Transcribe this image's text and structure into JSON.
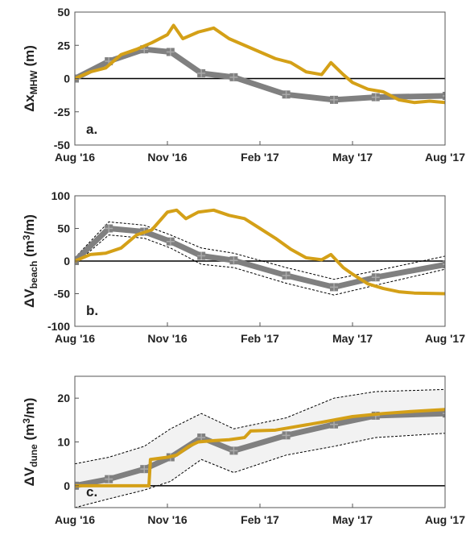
{
  "chart_data": [
    {
      "type": "line",
      "annotation": "a.",
      "ylabel": [
        {
          "text": "Δx"
        },
        {
          "text": "MHW",
          "sub": true
        },
        {
          "text": " (m)"
        }
      ],
      "xlim": [
        0,
        12
      ],
      "xticks": [
        {
          "value": 0,
          "label": "Aug '16"
        },
        {
          "value": 3,
          "label": "Nov '16"
        },
        {
          "value": 6,
          "label": "Feb '17"
        },
        {
          "value": 9,
          "label": "May '17"
        },
        {
          "value": 12,
          "label": "Aug '17"
        }
      ],
      "ylim": [
        -50,
        50
      ],
      "yticks": [
        -50,
        -25,
        0,
        25,
        50
      ],
      "zero_line": true,
      "band": false,
      "series": [
        {
          "color": "#808080",
          "style": "markers",
          "x": [
            0,
            1.1,
            2.25,
            3.1,
            4.1,
            5.15,
            6.85,
            8.4,
            9.75,
            12.05
          ],
          "values": [
            0,
            13,
            22,
            20,
            4,
            1,
            -12,
            -16,
            -14,
            -13
          ]
        },
        {
          "color": "#d4a017",
          "style": "line",
          "x": [
            0,
            0.5,
            1,
            1.5,
            2,
            2.5,
            3,
            3.2,
            3.5,
            4,
            4.5,
            5,
            5.5,
            6,
            6.5,
            7,
            7.5,
            8,
            8.3,
            8.7,
            9,
            9.5,
            10,
            10.5,
            11,
            11.5,
            12
          ],
          "values": [
            0,
            5,
            8,
            18,
            22,
            27,
            33,
            40,
            30,
            35,
            38,
            30,
            25,
            20,
            15,
            12,
            5,
            3,
            12,
            3,
            -3,
            -8,
            -10,
            -16,
            -18,
            -17,
            -18
          ]
        }
      ]
    },
    {
      "type": "line",
      "annotation": "b.",
      "ylabel": [
        {
          "text": "ΔV"
        },
        {
          "text": "beach",
          "sub": true
        },
        {
          "text": " (m"
        },
        {
          "text": "3",
          "sup": true
        },
        {
          "text": "/m)"
        }
      ],
      "xlim": [
        0,
        12
      ],
      "xticks": [
        {
          "value": 0,
          "label": "Aug '16"
        },
        {
          "value": 3,
          "label": "Nov '16"
        },
        {
          "value": 6,
          "label": "Feb '17"
        },
        {
          "value": 9,
          "label": "May '17"
        },
        {
          "value": 12,
          "label": "Aug '17"
        }
      ],
      "ylim": [
        -100,
        100
      ],
      "yticks": [
        -100,
        -50,
        0,
        50,
        100
      ],
      "zero_line": true,
      "band": false,
      "series": [
        {
          "color": "#000000",
          "style": "dashed",
          "x": [
            0,
            1.1,
            2.25,
            3.1,
            4.1,
            5.15,
            6.85,
            8.4,
            9.75,
            12.05
          ],
          "values": [
            5,
            60,
            55,
            40,
            20,
            12,
            -10,
            -28,
            -15,
            8
          ]
        },
        {
          "color": "#000000",
          "style": "dashed",
          "x": [
            0,
            1.1,
            2.25,
            3.1,
            4.1,
            5.15,
            6.85,
            8.4,
            9.75,
            12.05
          ],
          "values": [
            -5,
            40,
            35,
            20,
            -5,
            -10,
            -34,
            -52,
            -37,
            -12
          ]
        },
        {
          "color": "#808080",
          "style": "markers",
          "x": [
            0,
            1.1,
            2.25,
            3.1,
            4.1,
            5.15,
            6.85,
            8.4,
            9.75,
            12.05
          ],
          "values": [
            0,
            50,
            45,
            30,
            8,
            1,
            -22,
            -40,
            -25,
            -5
          ]
        },
        {
          "color": "#d4a017",
          "style": "line",
          "x": [
            0,
            0.5,
            1,
            1.5,
            2,
            2.5,
            3,
            3.3,
            3.6,
            4,
            4.5,
            5,
            5.5,
            6,
            6.5,
            7,
            7.5,
            8,
            8.3,
            8.7,
            9,
            9.5,
            10,
            10.5,
            11,
            12
          ],
          "values": [
            0,
            10,
            12,
            20,
            40,
            48,
            75,
            78,
            65,
            75,
            78,
            70,
            65,
            50,
            35,
            18,
            5,
            2,
            10,
            -10,
            -20,
            -35,
            -42,
            -47,
            -49,
            -50
          ]
        }
      ]
    },
    {
      "type": "line",
      "annotation": "c.",
      "ylabel": [
        {
          "text": "ΔV"
        },
        {
          "text": "dune",
          "sub": true
        },
        {
          "text": " (m"
        },
        {
          "text": "3",
          "sup": true
        },
        {
          "text": "/m)"
        }
      ],
      "xlim": [
        0,
        12
      ],
      "xticks": [
        {
          "value": 0,
          "label": "Aug '16"
        },
        {
          "value": 3,
          "label": "Nov '16"
        },
        {
          "value": 6,
          "label": "Feb '17"
        },
        {
          "value": 9,
          "label": "May '17"
        },
        {
          "value": 12,
          "label": "Aug '17"
        }
      ],
      "ylim": [
        -5,
        25
      ],
      "yticks": [
        0,
        10,
        20
      ],
      "zero_line": true,
      "band": true,
      "series": [
        {
          "color": "#000000",
          "style": "dashed",
          "x": [
            0,
            1.1,
            2.25,
            3.1,
            4.1,
            5.15,
            6.85,
            8.4,
            9.75,
            12.05
          ],
          "values": [
            5,
            6.5,
            9,
            13,
            16.5,
            13,
            15.5,
            20,
            21.5,
            22
          ]
        },
        {
          "color": "#000000",
          "style": "dashed",
          "x": [
            0,
            1.1,
            2.25,
            3.1,
            4.1,
            5.15,
            6.85,
            8.4,
            9.75,
            12.05
          ],
          "values": [
            -5,
            -3,
            -1,
            1,
            6,
            3,
            7,
            9,
            11,
            12
          ]
        },
        {
          "color": "#808080",
          "style": "markers",
          "x": [
            0,
            1.1,
            2.25,
            3.1,
            4.1,
            5.15,
            6.85,
            8.4,
            9.75,
            12.05
          ],
          "values": [
            0,
            1.5,
            3.8,
            6.5,
            11,
            8,
            11.5,
            14,
            16,
            16.5
          ]
        },
        {
          "color": "#d4a017",
          "style": "line",
          "x": [
            0,
            2.4,
            2.45,
            3,
            3.3,
            3.7,
            4,
            4.5,
            5,
            5.5,
            5.7,
            6.5,
            7,
            8,
            9,
            10,
            11,
            12
          ],
          "values": [
            0,
            0,
            6,
            6.5,
            7,
            9,
            10,
            10.3,
            10.5,
            11,
            12.5,
            12.7,
            13.3,
            14.5,
            15.8,
            16.5,
            17,
            17.4
          ]
        }
      ]
    }
  ]
}
